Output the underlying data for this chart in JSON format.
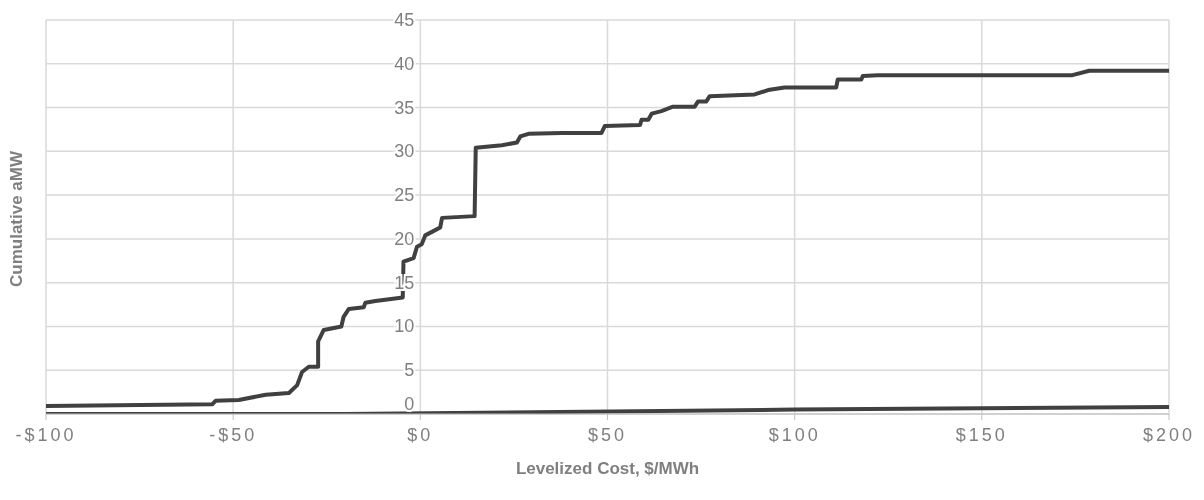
{
  "chart_data": {
    "type": "line",
    "xlabel": "Levelized Cost, $/MWh",
    "ylabel": "Cumulative aMW",
    "xlim": [
      -100,
      200
    ],
    "ylim": [
      0,
      45
    ],
    "xticks": [
      {
        "value": -100,
        "label": "-$100"
      },
      {
        "value": -50,
        "label": "-$50"
      },
      {
        "value": 0,
        "label": "$0"
      },
      {
        "value": 50,
        "label": "$50"
      },
      {
        "value": 100,
        "label": "$100"
      },
      {
        "value": 150,
        "label": "$150"
      },
      {
        "value": 200,
        "label": "$200"
      }
    ],
    "yticks": [
      0,
      5,
      10,
      15,
      20,
      25,
      30,
      35,
      40,
      45
    ],
    "grid": true,
    "marker": "none",
    "line_style": "solid",
    "series": [
      {
        "color": "#404040",
        "x": [
          -100,
          -55.6,
          -54.7,
          -48.5,
          -41.3,
          -35.1,
          -32.9,
          -31.6,
          -29.8,
          -27.3,
          -27.3,
          -25.8,
          -21.1,
          -20.5,
          -19.1,
          -15.1,
          -14.7,
          -12,
          -4.7,
          -4.5,
          -1.8,
          -0.9,
          0.4,
          1.3,
          3.1,
          5.3,
          5.8,
          14.5,
          14.8,
          21.8,
          25.8,
          26.7,
          28.9,
          37.8,
          48.4,
          49.3,
          58.7,
          59.1,
          60.9,
          61.8,
          64.4,
          67.5,
          73.3,
          74.2,
          76.4,
          77.3,
          89.3,
          92.9,
          97.3,
          111.1,
          111.5,
          117.8,
          118.2,
          122.2,
          174.2,
          178.7,
          200
        ],
        "values": [
          0.9,
          1.1,
          1.5,
          1.6,
          2.2,
          2.4,
          3.3,
          4.8,
          5.4,
          5.4,
          8.3,
          9.6,
          10,
          11.1,
          12,
          12.2,
          12.7,
          12.9,
          13.3,
          17.4,
          17.8,
          19.1,
          19.4,
          20.4,
          20.8,
          21.3,
          22.4,
          22.6,
          30.4,
          30.7,
          31,
          31.7,
          32,
          32.1,
          32.1,
          32.9,
          33,
          33.6,
          33.6,
          34.3,
          34.6,
          35.1,
          35.1,
          35.7,
          35.7,
          36.3,
          36.5,
          37,
          37.3,
          37.3,
          38.2,
          38.2,
          38.6,
          38.7,
          38.7,
          39.2,
          39.2
        ]
      },
      {
        "color": "#404040",
        "x": [
          -100,
          -20,
          100,
          200
        ],
        "values": [
          0,
          0,
          0.5,
          0.8
        ]
      }
    ]
  }
}
